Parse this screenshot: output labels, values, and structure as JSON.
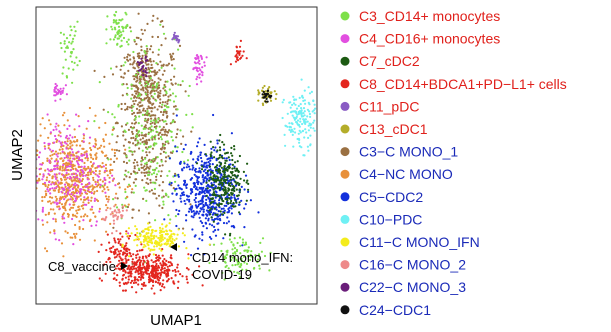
{
  "chart_data": {
    "type": "scatter",
    "title": "",
    "xlabel": "UMAP1",
    "ylabel": "UMAP2",
    "xlim": [
      0,
      100
    ],
    "ylim": [
      0,
      100
    ],
    "grid": false,
    "legend_position": "right",
    "series": [
      {
        "name": "C3_CD14+ monocytes",
        "color": "#7ee04a",
        "label_color": "#e0201b"
      },
      {
        "name": "C4_CD16+ monocytes",
        "color": "#e24fe0",
        "label_color": "#e0201b"
      },
      {
        "name": "C7_cDC2",
        "color": "#1c5a12",
        "label_color": "#e0201b"
      },
      {
        "name": "C8_CD14+BDCA1+PD−L1+ cells",
        "color": "#e3261e",
        "label_color": "#e0201b"
      },
      {
        "name": "C11_pDC",
        "color": "#8a5cc4",
        "label_color": "#e0201b"
      },
      {
        "name": "C13_cDC1",
        "color": "#b4ad2a",
        "label_color": "#e0201b"
      },
      {
        "name": "C3−C MONO_1",
        "color": "#9a7042",
        "label_color": "#1a2ab8"
      },
      {
        "name": "C4−NC MONO",
        "color": "#e8903a",
        "label_color": "#1a2ab8"
      },
      {
        "name": "C5−CDC2",
        "color": "#1330dc",
        "label_color": "#1a2ab8"
      },
      {
        "name": "C10−PDC",
        "color": "#6ff0f4",
        "label_color": "#1a2ab8"
      },
      {
        "name": "C11−C MONO_IFN",
        "color": "#f4ec1c",
        "label_color": "#1a2ab8"
      },
      {
        "name": "C16−C MONO_2",
        "color": "#ee8a8a",
        "label_color": "#1a2ab8"
      },
      {
        "name": "C22−C MONO_3",
        "color": "#6a1e7a",
        "label_color": "#1a2ab8"
      },
      {
        "name": "C24−CDC1",
        "color": "#111111",
        "label_color": "#1a2ab8"
      }
    ],
    "annotations": [
      {
        "text": "C8_vaccine",
        "lines": [
          "C8_vaccine"
        ],
        "x": 38,
        "y": 10
      },
      {
        "text": "CD14 mono_IFN: COVID-19",
        "lines": [
          "CD14 mono_IFN:",
          "COVID-19"
        ],
        "x": 49,
        "y": 16
      }
    ]
  }
}
